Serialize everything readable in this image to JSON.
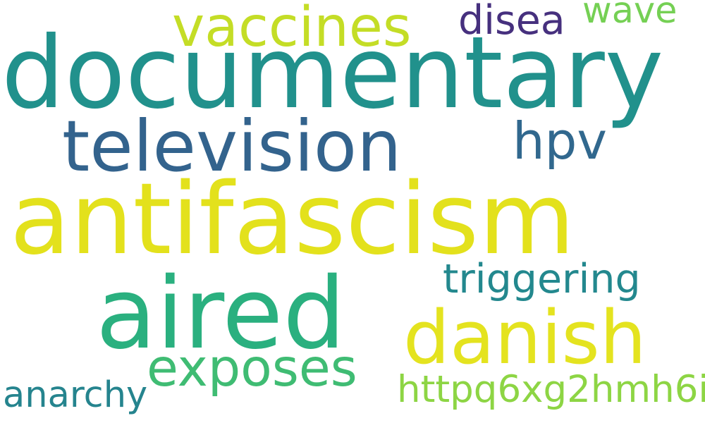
{
  "words": [
    {
      "text": "documentary",
      "color": "#21918c"
    },
    {
      "text": "antifascism",
      "color": "#e3e11c"
    },
    {
      "text": "aired",
      "color": "#2ab07f"
    },
    {
      "text": "television",
      "color": "#33638d"
    },
    {
      "text": "danish",
      "color": "#e4e31f"
    },
    {
      "text": "vaccines",
      "color": "#c4dd26"
    },
    {
      "text": "exposes",
      "color": "#3fbc73"
    },
    {
      "text": "hpv",
      "color": "#31688e"
    },
    {
      "text": "triggering",
      "color": "#23888e"
    },
    {
      "text": "disea",
      "color": "#46307e"
    },
    {
      "text": "httpq6xg2hmh6i",
      "color": "#8dd544"
    },
    {
      "text": "anarchy",
      "color": "#25848e"
    },
    {
      "text": "wave",
      "color": "#75d054"
    }
  ]
}
